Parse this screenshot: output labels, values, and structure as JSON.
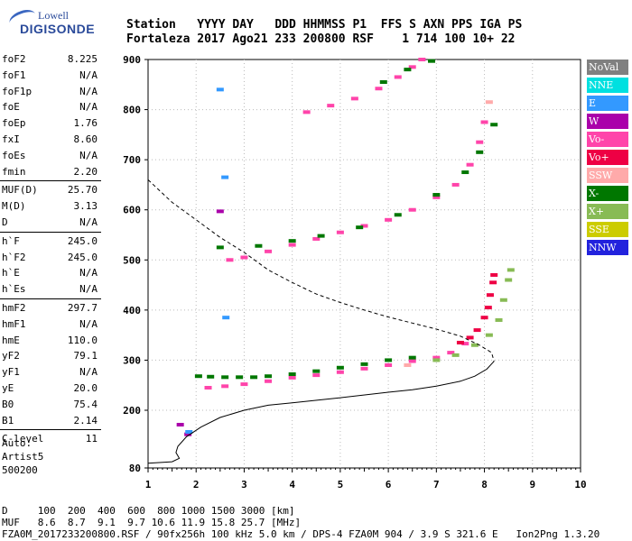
{
  "logo": {
    "line1": "Lowell",
    "line2": "DIGISONDE"
  },
  "header": {
    "line1": "Station   YYYY DAY   DDD HHMMSS P1  FFS S AXN PPS IGA PS",
    "line2": "Fortaleza 2017 Ago21 233 200800 RSF    1 714 100 10+ 22"
  },
  "params": [
    {
      "name": "foF2",
      "value": "8.225"
    },
    {
      "name": "foF1",
      "value": "N/A"
    },
    {
      "name": "foF1p",
      "value": "N/A"
    },
    {
      "name": "foE",
      "value": "N/A"
    },
    {
      "name": "foEp",
      "value": "1.76"
    },
    {
      "name": "fxI",
      "value": "8.60"
    },
    {
      "name": "foEs",
      "value": "N/A"
    },
    {
      "name": "fmin",
      "value": "2.20"
    },
    {
      "name": "MUF(D)",
      "value": "25.70"
    },
    {
      "name": "M(D)",
      "value": "3.13"
    },
    {
      "name": "D",
      "value": "N/A"
    },
    {
      "name": "h`F",
      "value": "245.0"
    },
    {
      "name": "h`F2",
      "value": "245.0"
    },
    {
      "name": "h`E",
      "value": "N/A"
    },
    {
      "name": "h`Es",
      "value": "N/A"
    },
    {
      "name": "hmF2",
      "value": "297.7"
    },
    {
      "name": "hmF1",
      "value": "N/A"
    },
    {
      "name": "hmE",
      "value": "110.0"
    },
    {
      "name": "yF2",
      "value": "79.1"
    },
    {
      "name": "yF1",
      "value": "N/A"
    },
    {
      "name": "yE",
      "value": "20.0"
    },
    {
      "name": "B0",
      "value": "75.4"
    },
    {
      "name": "B1",
      "value": "2.14"
    },
    {
      "name": "C-level",
      "value": "11"
    }
  ],
  "auto": {
    "line1": "Auto:",
    "line2": "Artist5",
    "line3": "500200"
  },
  "legend": [
    {
      "label": "NoVal",
      "color": "#808080"
    },
    {
      "label": "NNE",
      "color": "#00e0e0"
    },
    {
      "label": "E",
      "color": "#3399ff"
    },
    {
      "label": "W",
      "color": "#aa00aa"
    },
    {
      "label": "Vo-",
      "color": "#ff44aa"
    },
    {
      "label": "Vo+",
      "color": "#ee0044"
    },
    {
      "label": "SSW",
      "color": "#ffaaaa"
    },
    {
      "label": "X-",
      "color": "#007700"
    },
    {
      "label": "X+",
      "color": "#88bb55"
    },
    {
      "label": "SSE",
      "color": "#cccc00"
    },
    {
      "label": "NNW",
      "color": "#2222dd"
    }
  ],
  "footer": {
    "line1": "D     100  200  400  600  800 1000 1500 3000 [km]",
    "line2": "MUF   8.6  8.7  9.1  9.7 10.6 11.9 15.8 25.7 [MHz]",
    "line3": "FZA0M_2017233200800.RSF / 90fx256h 100 kHz 5.0 km / DPS-4 FZA0M 904 / 3.9 S 321.6 E   Ion2Png 1.3.20"
  },
  "chart_data": {
    "type": "scatter",
    "title": "",
    "xlabel": "",
    "ylabel": "",
    "xlim": [
      1,
      10
    ],
    "ylim": [
      80,
      900
    ],
    "xticks": [
      "1",
      "2",
      "3",
      "4",
      "5",
      "6",
      "7",
      "8",
      "9",
      "10"
    ],
    "yticks": [
      "80",
      "200",
      "300",
      "400",
      "500",
      "600",
      "700",
      "800",
      "900"
    ],
    "series": [
      {
        "name": "Vo-",
        "color": "#ff44aa",
        "points": [
          [
            2.25,
            245
          ],
          [
            2.6,
            248
          ],
          [
            3.0,
            252
          ],
          [
            3.5,
            258
          ],
          [
            4.0,
            265
          ],
          [
            4.5,
            270
          ],
          [
            5.0,
            276
          ],
          [
            5.5,
            283
          ],
          [
            6.0,
            290
          ],
          [
            6.5,
            298
          ],
          [
            7.0,
            305
          ],
          [
            7.3,
            315
          ],
          [
            7.6,
            333
          ],
          [
            2.7,
            500
          ],
          [
            3.0,
            505
          ],
          [
            3.5,
            517
          ],
          [
            4.0,
            530
          ],
          [
            4.5,
            542
          ],
          [
            5.0,
            555
          ],
          [
            5.5,
            568
          ],
          [
            6.0,
            580
          ],
          [
            6.5,
            600
          ],
          [
            7.0,
            625
          ],
          [
            7.4,
            650
          ],
          [
            7.7,
            690
          ],
          [
            7.9,
            735
          ],
          [
            8.0,
            775
          ],
          [
            4.3,
            795
          ],
          [
            4.8,
            808
          ],
          [
            5.3,
            822
          ],
          [
            5.8,
            842
          ],
          [
            6.2,
            865
          ],
          [
            6.5,
            885
          ],
          [
            6.7,
            900
          ]
        ]
      },
      {
        "name": "Vo+",
        "color": "#ee0044",
        "points": [
          [
            7.5,
            335
          ],
          [
            7.7,
            345
          ],
          [
            7.85,
            360
          ],
          [
            8.0,
            385
          ],
          [
            8.08,
            405
          ],
          [
            8.12,
            430
          ],
          [
            8.18,
            455
          ],
          [
            8.2,
            470
          ]
        ]
      },
      {
        "name": "X-",
        "color": "#007700",
        "points": [
          [
            2.05,
            268
          ],
          [
            2.3,
            267
          ],
          [
            2.6,
            266
          ],
          [
            2.9,
            266
          ],
          [
            3.2,
            266
          ],
          [
            3.5,
            268
          ],
          [
            4.0,
            272
          ],
          [
            4.5,
            278
          ],
          [
            5.0,
            285
          ],
          [
            5.5,
            292
          ],
          [
            6.0,
            300
          ],
          [
            6.5,
            305
          ],
          [
            2.5,
            525
          ],
          [
            3.3,
            528
          ],
          [
            4.0,
            538
          ],
          [
            4.6,
            548
          ],
          [
            5.4,
            565
          ],
          [
            6.2,
            590
          ],
          [
            7.0,
            630
          ],
          [
            7.6,
            675
          ],
          [
            7.9,
            715
          ],
          [
            8.2,
            770
          ],
          [
            5.9,
            855
          ],
          [
            6.4,
            880
          ],
          [
            6.9,
            897
          ]
        ]
      },
      {
        "name": "X+",
        "color": "#88bb55",
        "points": [
          [
            7.0,
            300
          ],
          [
            7.4,
            310
          ],
          [
            7.8,
            330
          ],
          [
            8.1,
            350
          ],
          [
            8.3,
            380
          ],
          [
            8.4,
            420
          ],
          [
            8.5,
            460
          ],
          [
            8.55,
            480
          ]
        ]
      },
      {
        "name": "W",
        "color": "#aa00aa",
        "points": [
          [
            1.67,
            170
          ],
          [
            1.83,
            150
          ],
          [
            2.5,
            597
          ]
        ]
      },
      {
        "name": "E",
        "color": "#3399ff",
        "points": [
          [
            2.5,
            840
          ],
          [
            2.6,
            665
          ],
          [
            2.62,
            385
          ],
          [
            1.85,
            155
          ]
        ]
      },
      {
        "name": "SSW",
        "color": "#ffaaaa",
        "points": [
          [
            6.4,
            290
          ],
          [
            8.1,
            815
          ]
        ]
      }
    ],
    "profile_curve": [
      [
        1.0,
        90
      ],
      [
        1.5,
        93
      ],
      [
        1.65,
        100
      ],
      [
        1.58,
        112
      ],
      [
        1.62,
        125
      ],
      [
        1.8,
        145
      ],
      [
        2.1,
        165
      ],
      [
        2.5,
        185
      ],
      [
        3.0,
        200
      ],
      [
        3.5,
        210
      ],
      [
        4.0,
        215
      ],
      [
        5.0,
        225
      ],
      [
        6.0,
        236
      ],
      [
        6.5,
        241
      ],
      [
        7.0,
        248
      ],
      [
        7.5,
        258
      ],
      [
        7.8,
        268
      ],
      [
        8.05,
        282
      ],
      [
        8.2,
        297.7
      ]
    ],
    "dashed_curve": [
      [
        1.0,
        660
      ],
      [
        1.5,
        615
      ],
      [
        2.0,
        580
      ],
      [
        2.5,
        545
      ],
      [
        3.0,
        515
      ],
      [
        3.5,
        480
      ],
      [
        4.0,
        455
      ],
      [
        4.5,
        432
      ],
      [
        5.0,
        415
      ],
      [
        5.5,
        400
      ],
      [
        6.0,
        386
      ],
      [
        6.5,
        374
      ],
      [
        7.0,
        362
      ],
      [
        7.5,
        348
      ],
      [
        7.9,
        330
      ],
      [
        8.15,
        315
      ],
      [
        8.2,
        297.7
      ]
    ]
  }
}
